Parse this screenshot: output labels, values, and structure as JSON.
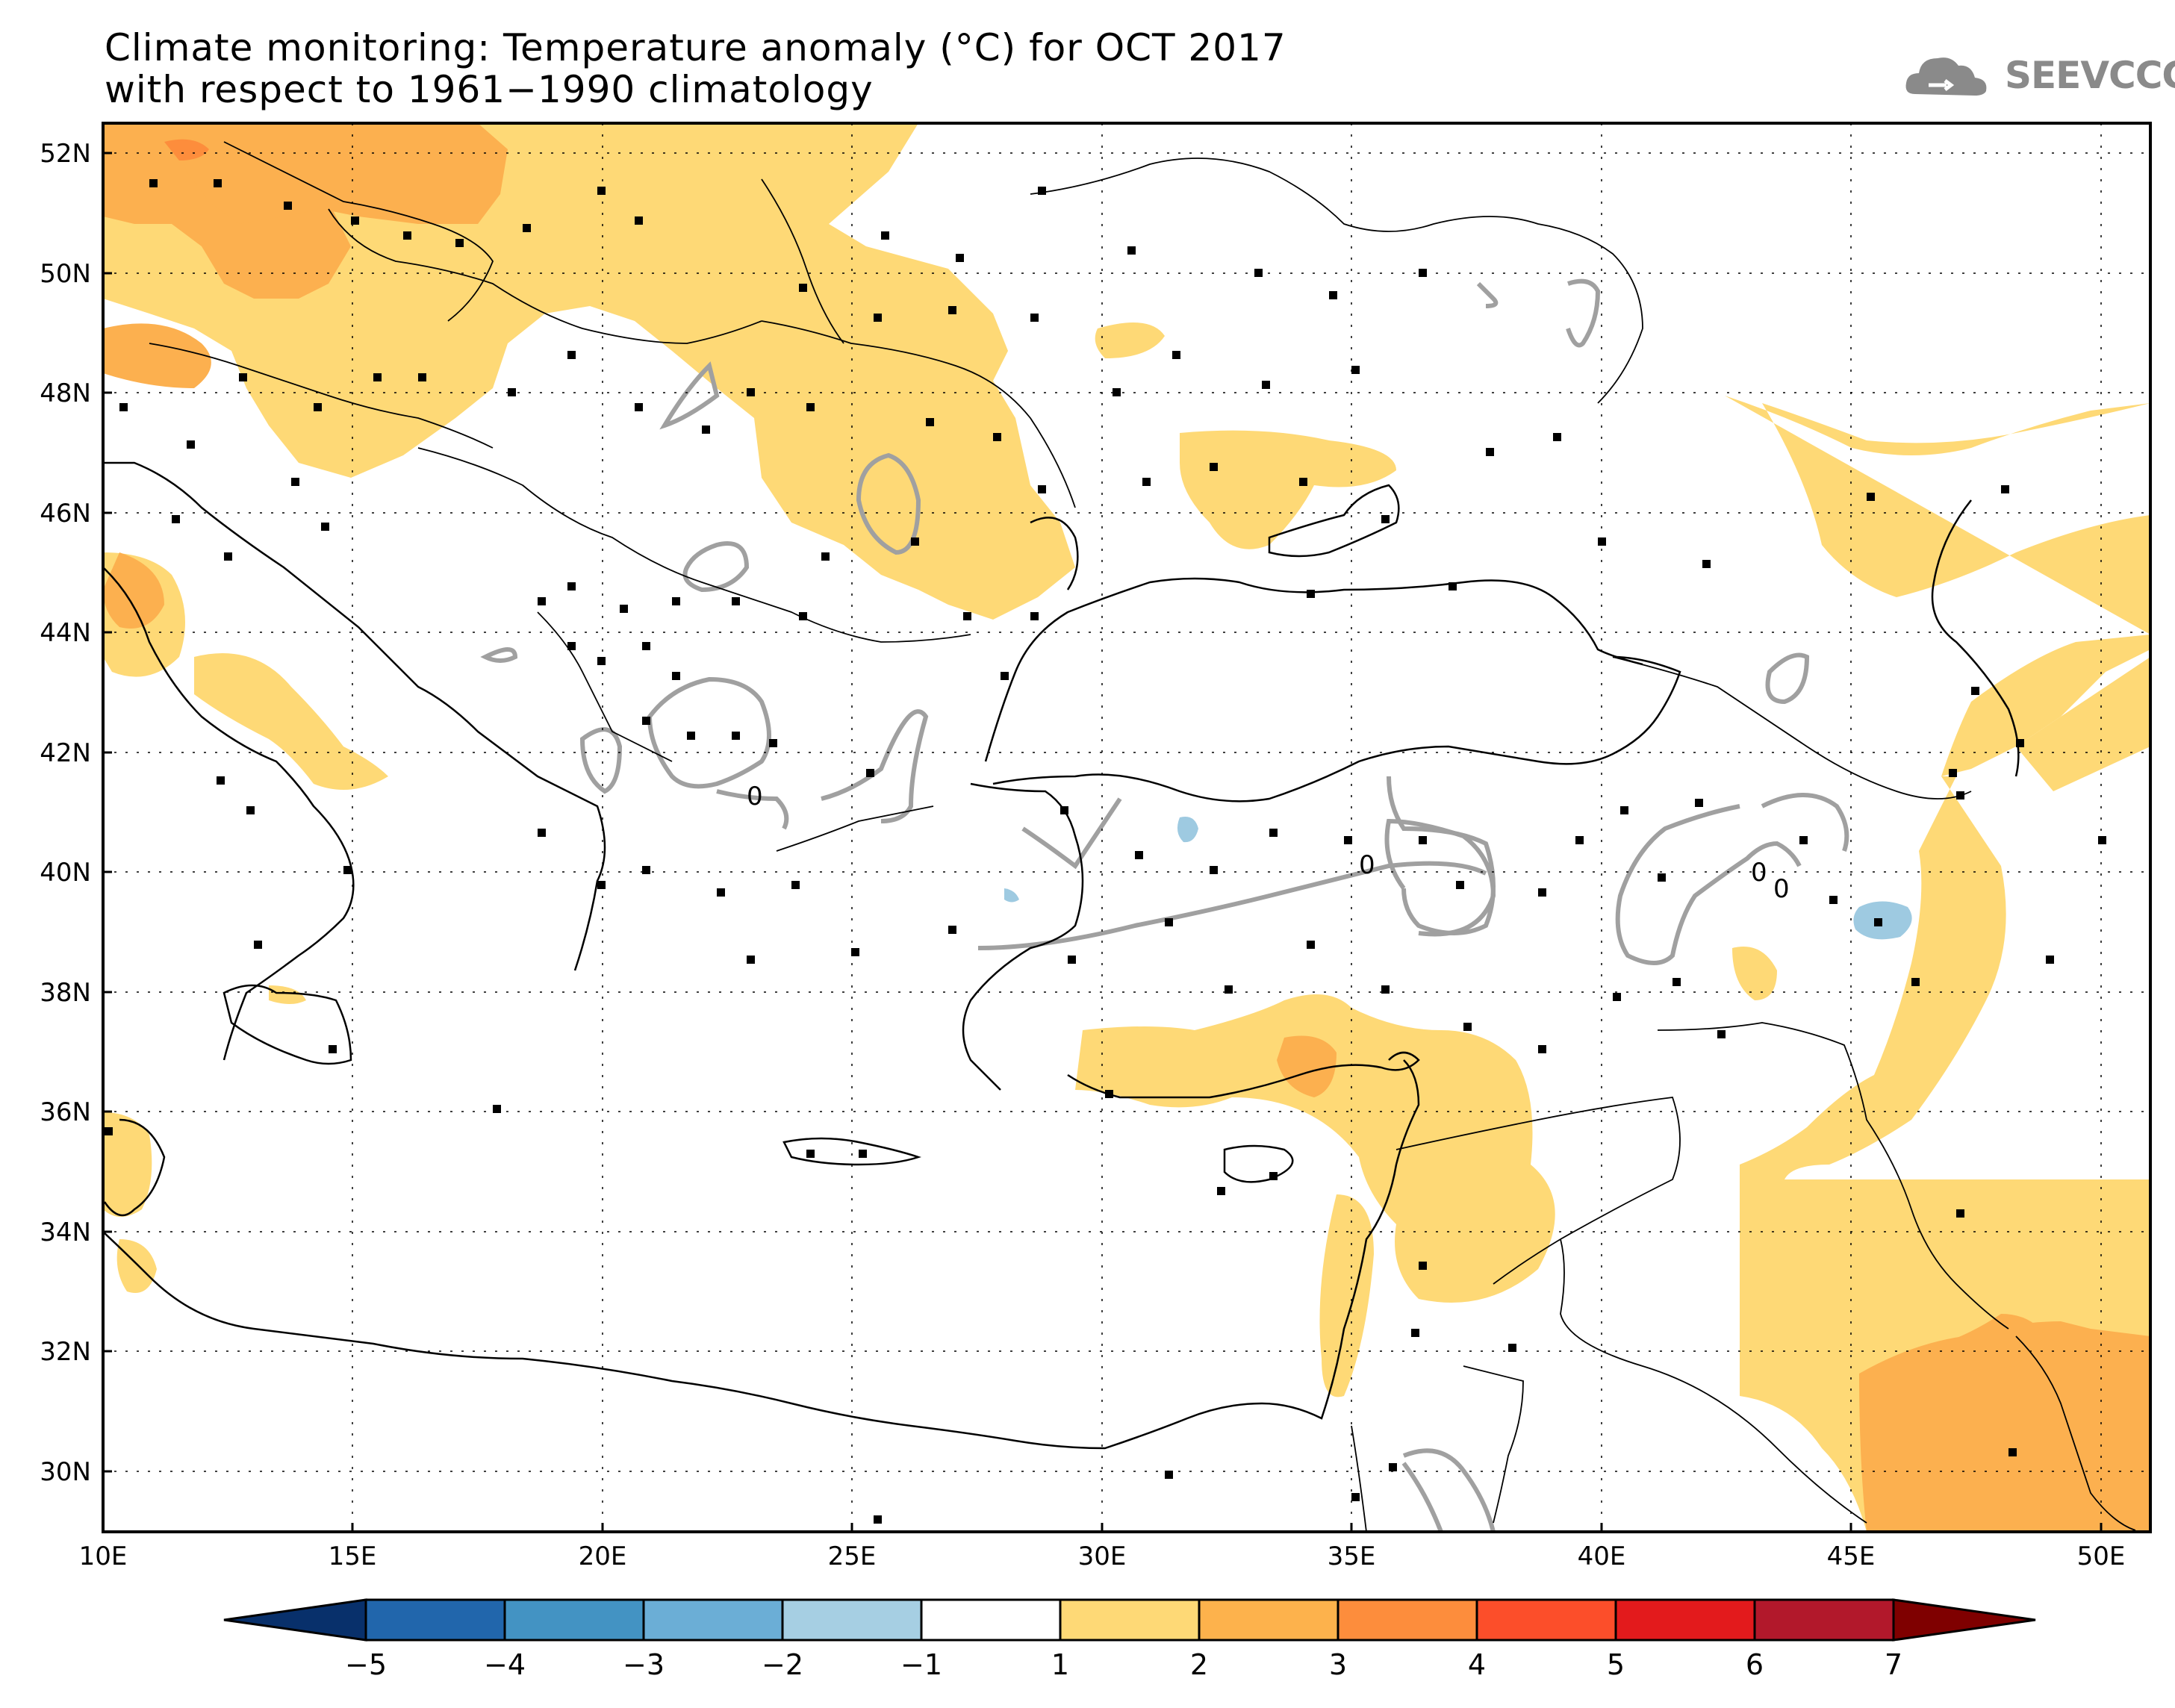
{
  "title": {
    "line1": "Climate monitoring: Temperature anomaly (°C) for OCT 2017",
    "line2": "with respect to 1961−1990 climatology"
  },
  "logo": {
    "text": "SEEVCCC",
    "icon": "cloud-icon",
    "color": "#8a8a8a"
  },
  "map": {
    "lon_range": [
      10,
      51
    ],
    "lat_range": [
      29,
      52.5
    ],
    "lon_ticks": [
      "10E",
      "15E",
      "20E",
      "25E",
      "30E",
      "35E",
      "40E",
      "45E",
      "50E"
    ],
    "lat_ticks": [
      "52N",
      "50N",
      "48N",
      "46N",
      "44N",
      "42N",
      "40N",
      "38N",
      "36N",
      "34N",
      "32N",
      "30N"
    ],
    "contour_label": "0"
  },
  "colorbar": {
    "labels": [
      "−5",
      "−4",
      "−3",
      "−2",
      "−1",
      "1",
      "2",
      "3",
      "4",
      "5",
      "6",
      "7"
    ],
    "colors": [
      "#08306b",
      "#2166ac",
      "#4393c3",
      "#6baed6",
      "#a6cfe3",
      "#ffffff",
      "#fed976",
      "#fdb24c",
      "#fd8d3c",
      "#fc4e2a",
      "#e31a1c",
      "#b2182b",
      "#7f0000"
    ]
  },
  "legend_colors": {
    "anomaly_1_2": "#fed976",
    "anomaly_2_3": "#fcb04f",
    "anomaly_neg1_neg2": "#a6cfe3",
    "zero_contour": "#a0a0a0"
  }
}
